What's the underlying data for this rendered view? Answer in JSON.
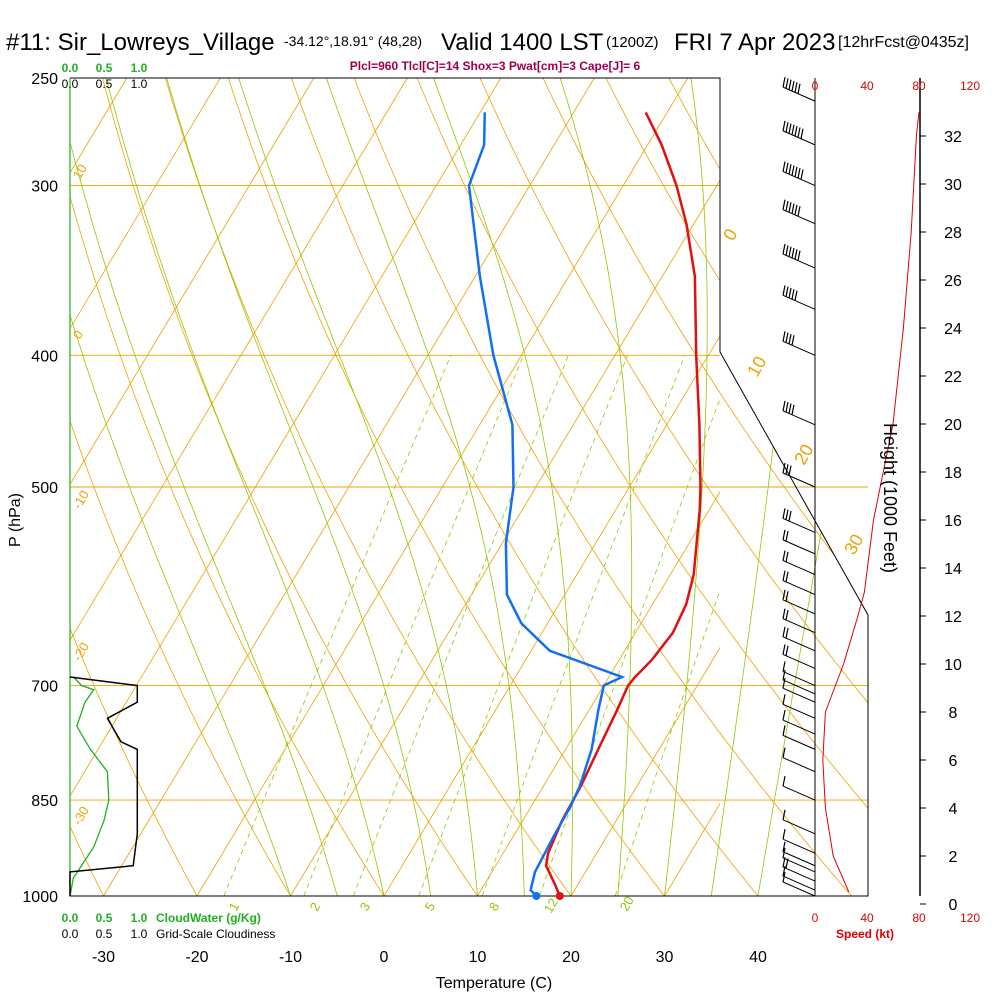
{
  "header": {
    "station": "#11: Sir_Lowreys_Village",
    "coords": "-34.12°,18.91° (48,28)",
    "valid": "Valid 1400 LST",
    "utc": "(1200Z)",
    "date": "FRI 7 Apr 2023",
    "forecast": "[12hrFcst@0435z]",
    "indices": "Plcl=960 Tlcl[C]=14 Shox=3 Pwat[cm]=3 Cape[J]= 6"
  },
  "colors": {
    "isobar": "#f0a000",
    "dry_adiabat": "#f0a000",
    "moist_adiabat": "#90c800",
    "mixing_ratio": "#90c800",
    "temperature": "#e01010",
    "dewpoint": "#1070f0",
    "cloud_water": "#20b020",
    "cloudiness": "#000000",
    "speed": "#e00000",
    "index_text": "#a0004a"
  },
  "labels": {
    "pressure_axis": "P (hPa)",
    "temperature_axis": "Temperature (C)",
    "height_axis": "Height (1000 Feet)",
    "cloud_water": "CloudWater (g/Kg)",
    "cloudiness": "Grid-Scale Cloudiness",
    "speed": "Speed (kt)"
  },
  "chart_data": {
    "type": "line",
    "xlabel": "Temperature (C)",
    "ylabel": "P (hPa)",
    "log_pressure_axis": true,
    "xlim": [
      -34,
      46
    ],
    "ylim": [
      1000,
      250
    ],
    "pressure_ticks": [
      250,
      300,
      400,
      500,
      700,
      850,
      1000
    ],
    "temperature_ticks": [
      -30,
      -20,
      -10,
      0,
      10,
      20,
      30,
      40
    ],
    "height_ticks": [
      0,
      2,
      4,
      6,
      8,
      10,
      12,
      14,
      16,
      18,
      20,
      22,
      24,
      26,
      28,
      30,
      32
    ],
    "speed_ticks_top": [
      "0",
      "40",
      "80",
      "120"
    ],
    "speed_ticks_bottom": [
      "0",
      "40",
      "80",
      "120"
    ],
    "cloud_ticks": [
      "0.0",
      "0.5",
      "1.0"
    ],
    "dry_adiabat_labels": [
      "10",
      "0",
      "-10",
      "-20",
      "-30",
      "0",
      "10",
      "20",
      "30"
    ],
    "mixing_ratio_labels": [
      "1",
      "2",
      "3",
      "5",
      "8",
      "12",
      "20"
    ],
    "temperature": [
      [
        1000,
        18.8
      ],
      [
        980,
        17.5
      ],
      [
        950,
        15.4
      ],
      [
        930,
        14.8
      ],
      [
        880,
        14.2
      ],
      [
        830,
        14.0
      ],
      [
        780,
        13.5
      ],
      [
        730,
        13.0
      ],
      [
        700,
        12.6
      ],
      [
        690,
        12.8
      ],
      [
        670,
        13.5
      ],
      [
        640,
        14.0
      ],
      [
        610,
        13.6
      ],
      [
        580,
        12.5
      ],
      [
        550,
        10.8
      ],
      [
        520,
        9.0
      ],
      [
        500,
        7.6
      ],
      [
        450,
        3.5
      ],
      [
        400,
        -1.3
      ],
      [
        350,
        -6.5
      ],
      [
        320,
        -10.8
      ],
      [
        300,
        -14.3
      ],
      [
        280,
        -18.5
      ],
      [
        265,
        -22.3
      ]
    ],
    "dewpoint": [
      [
        1000,
        16.3
      ],
      [
        990,
        15.3
      ],
      [
        960,
        14.6
      ],
      [
        900,
        14.3
      ],
      [
        860,
        14.2
      ],
      [
        830,
        13.9
      ],
      [
        780,
        12.8
      ],
      [
        730,
        11.0
      ],
      [
        700,
        10.0
      ],
      [
        690,
        11.4
      ],
      [
        660,
        2.0
      ],
      [
        630,
        -2.8
      ],
      [
        600,
        -6.2
      ],
      [
        550,
        -9.6
      ],
      [
        500,
        -12.4
      ],
      [
        450,
        -16.5
      ],
      [
        400,
        -23.0
      ],
      [
        350,
        -29.5
      ],
      [
        300,
        -36.5
      ],
      [
        280,
        -37.5
      ],
      [
        265,
        -39.5
      ]
    ],
    "cloud_water": [
      [
        1000,
        0.0
      ],
      [
        970,
        0.05
      ],
      [
        920,
        0.35
      ],
      [
        880,
        0.5
      ],
      [
        850,
        0.57
      ],
      [
        810,
        0.55
      ],
      [
        780,
        0.3
      ],
      [
        750,
        0.1
      ],
      [
        720,
        0.22
      ],
      [
        705,
        0.35
      ],
      [
        700,
        0.17
      ],
      [
        690,
        0.05
      ]
    ],
    "cloudiness": [
      [
        1000,
        0.0
      ],
      [
        960,
        0.0
      ],
      [
        950,
        0.93
      ],
      [
        900,
        0.99
      ],
      [
        850,
        0.99
      ],
      [
        780,
        0.99
      ],
      [
        770,
        0.75
      ],
      [
        740,
        0.55
      ],
      [
        720,
        0.99
      ],
      [
        700,
        0.99
      ],
      [
        690,
        0.0
      ]
    ],
    "wind_speed_profile": [
      [
        0.5,
        26
      ],
      [
        1,
        22
      ],
      [
        2,
        14
      ],
      [
        4,
        8
      ],
      [
        6,
        6
      ],
      [
        8,
        8
      ],
      [
        10,
        22
      ],
      [
        12,
        33
      ],
      [
        13,
        38
      ],
      [
        16,
        45
      ],
      [
        20,
        60
      ],
      [
        24,
        68
      ],
      [
        28,
        74
      ],
      [
        32,
        78
      ],
      [
        33,
        80
      ]
    ],
    "wind_barbs": [
      [
        1000,
        14
      ],
      [
        990,
        14
      ],
      [
        975,
        15
      ],
      [
        960,
        14
      ],
      [
        950,
        12
      ],
      [
        930,
        10
      ],
      [
        900,
        9
      ],
      [
        850,
        8
      ],
      [
        810,
        9
      ],
      [
        780,
        8
      ],
      [
        760,
        9
      ],
      [
        740,
        10
      ],
      [
        720,
        12
      ],
      [
        710,
        13
      ],
      [
        700,
        12
      ],
      [
        680,
        15
      ],
      [
        660,
        17
      ],
      [
        640,
        19
      ],
      [
        620,
        20
      ],
      [
        600,
        22
      ],
      [
        580,
        22
      ],
      [
        560,
        24
      ],
      [
        540,
        25
      ],
      [
        500,
        30
      ],
      [
        450,
        35
      ],
      [
        400,
        40
      ],
      [
        370,
        45
      ],
      [
        345,
        55
      ],
      [
        320,
        60
      ],
      [
        300,
        65
      ],
      [
        280,
        65
      ],
      [
        260,
        60
      ]
    ]
  }
}
